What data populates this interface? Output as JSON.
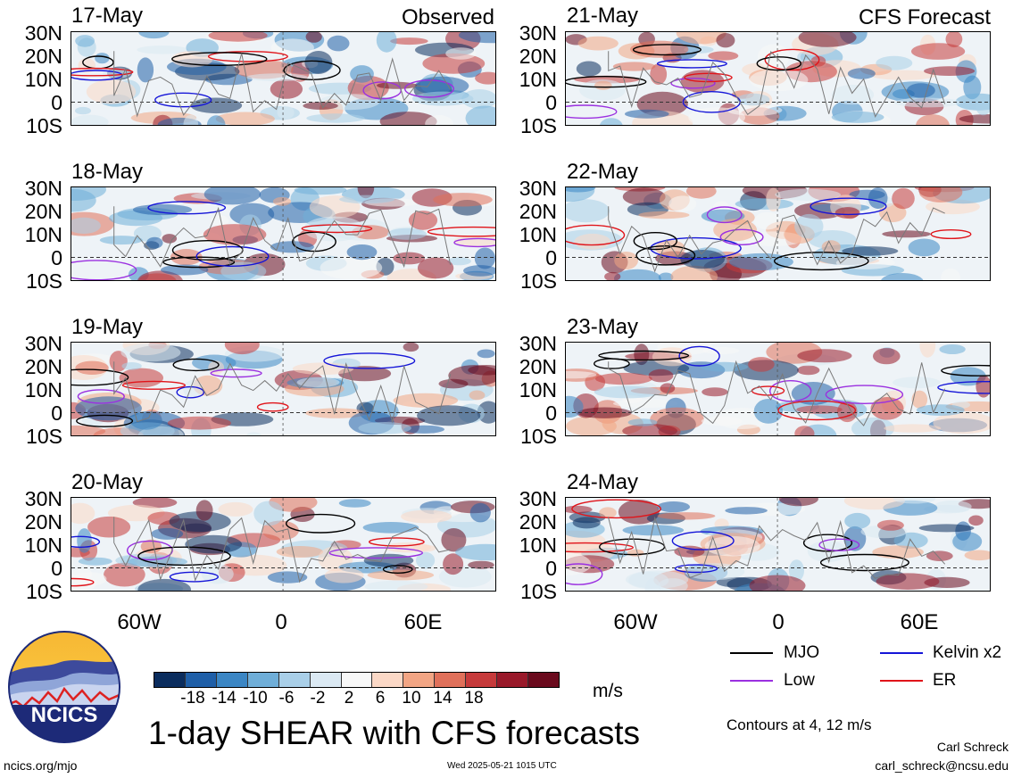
{
  "header": {
    "observed_label": "Observed",
    "forecast_label": "CFS Forecast"
  },
  "panels": {
    "observed": [
      {
        "date": "17-May"
      },
      {
        "date": "18-May"
      },
      {
        "date": "19-May"
      },
      {
        "date": "20-May"
      }
    ],
    "forecast": [
      {
        "date": "21-May"
      },
      {
        "date": "22-May"
      },
      {
        "date": "23-May"
      },
      {
        "date": "24-May"
      }
    ]
  },
  "lat_labels": [
    "30N",
    "20N",
    "10N",
    "0",
    "10S"
  ],
  "lon_labels": [
    "60W",
    "0",
    "60E"
  ],
  "colorbar": {
    "ticks": [
      "-18",
      "-14",
      "-10",
      "-6",
      "-2",
      "2",
      "6",
      "10",
      "14",
      "18"
    ],
    "units": "m/s",
    "colors": [
      "#0b2d5e",
      "#1f5fa8",
      "#3b86c4",
      "#6faed8",
      "#a9cfe8",
      "#dbe9f3",
      "#f8f8f8",
      "#fbd8c6",
      "#f2a584",
      "#e0705a",
      "#c63a3b",
      "#99192a",
      "#6a0a1d"
    ]
  },
  "legend": {
    "items": [
      {
        "label": "MJO",
        "color": "#000000"
      },
      {
        "label": "Kelvin x2",
        "color": "#1515d8"
      },
      {
        "label": "Low",
        "color": "#9b30e0"
      },
      {
        "label": "ER",
        "color": "#e0141a"
      }
    ],
    "contours_note": "Contours at 4, 12 m/s"
  },
  "footer": {
    "main_title": "1-day SHEAR with CFS forecasts",
    "logo_text": "NCICS",
    "site": "ncics.org/mjo",
    "timestamp": "Wed 2025-05-21 1015 UTC",
    "author": "Carl Schreck",
    "email": "carl_schreck@ncsu.edu"
  }
}
